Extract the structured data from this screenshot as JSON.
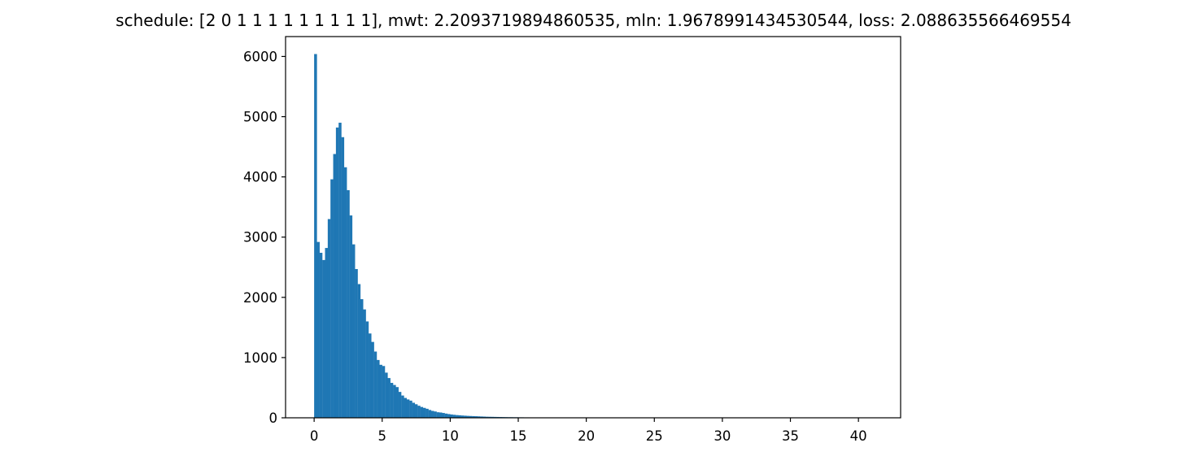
{
  "chart_data": {
    "type": "bar",
    "title": "schedule: [2 0 1 1 1 1 1 1 1 1 1], mwt: 2.2093719894860535, mln: 1.9678991434530544, loss: 2.088635566469554",
    "xlabel": "",
    "ylabel": "",
    "xlim": [
      -2.1,
      43.1
    ],
    "ylim": [
      0,
      6330
    ],
    "xticks": [
      0,
      5,
      10,
      15,
      20,
      25,
      30,
      35,
      40
    ],
    "yticks": [
      0,
      1000,
      2000,
      3000,
      4000,
      5000,
      6000
    ],
    "grid": false,
    "bar_color": "#1f77b4",
    "bin_start": 0,
    "bin_width": 0.2,
    "values": [
      6040,
      2920,
      2740,
      2620,
      2820,
      3300,
      3960,
      4380,
      4820,
      4900,
      4660,
      4160,
      3780,
      3360,
      2880,
      2470,
      2220,
      1970,
      1800,
      1600,
      1400,
      1260,
      1100,
      960,
      880,
      860,
      750,
      660,
      580,
      545,
      510,
      430,
      370,
      330,
      305,
      285,
      250,
      225,
      200,
      180,
      165,
      150,
      130,
      115,
      105,
      92,
      88,
      80,
      70,
      62,
      55,
      50,
      45,
      42,
      38,
      35,
      32,
      30,
      28,
      26,
      24,
      22,
      20,
      18,
      17,
      16,
      15,
      14,
      13,
      12,
      11,
      10,
      10,
      9,
      9,
      8,
      8,
      7,
      7,
      6,
      6,
      6,
      5,
      5,
      5,
      5,
      4,
      4,
      4,
      4,
      4,
      3,
      3,
      3,
      3,
      3,
      3,
      3,
      2,
      2,
      2,
      2,
      2,
      2,
      2,
      2,
      2,
      2,
      2,
      2,
      2,
      1,
      1,
      1,
      1,
      1,
      1,
      1,
      1,
      1,
      1,
      1,
      1,
      1,
      1,
      1,
      1,
      1,
      1,
      1,
      1,
      1,
      1,
      1,
      1,
      1,
      1,
      1,
      1,
      1,
      1,
      1,
      1,
      1,
      1,
      1,
      1,
      1,
      1,
      1,
      1,
      1,
      1,
      1,
      1,
      1,
      1,
      1,
      1,
      1,
      1,
      1,
      1,
      1,
      1,
      1,
      1,
      1,
      1,
      1,
      1,
      1,
      1,
      1,
      1,
      1,
      1,
      1,
      1,
      1,
      1,
      1,
      1,
      1,
      1,
      1,
      1,
      1,
      1,
      1,
      1,
      1,
      1,
      1,
      1,
      1,
      1,
      1,
      1,
      1
    ]
  }
}
